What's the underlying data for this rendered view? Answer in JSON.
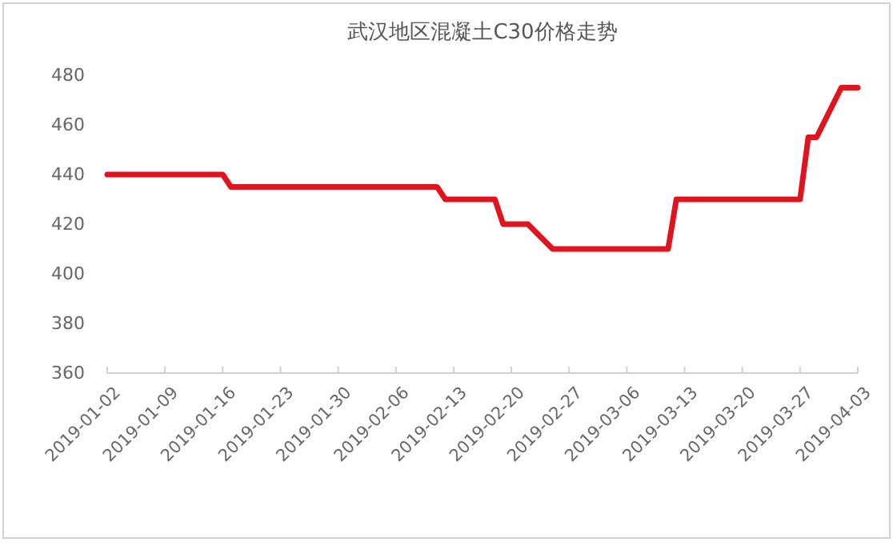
{
  "chart_data": {
    "type": "line",
    "title": "武汉地区混凝土C30价格走势",
    "x": [
      "2019-01-02",
      "2019-01-16",
      "2019-01-17",
      "2019-02-11",
      "2019-02-12",
      "2019-02-18",
      "2019-02-19",
      "2019-02-22",
      "2019-02-25",
      "2019-03-11",
      "2019-03-12",
      "2019-03-27",
      "2019-03-28",
      "2019-03-29",
      "2019-04-01",
      "2019-04-03"
    ],
    "series": [
      {
        "color": "#e0141e",
        "values": [
          440,
          440,
          435,
          435,
          430,
          430,
          420,
          420,
          410,
          410,
          430,
          430,
          455,
          455,
          475,
          475
        ]
      }
    ],
    "xlim": [
      "2019-01-02",
      "2019-04-03"
    ],
    "xticks": [
      "2019-01-02",
      "2019-01-09",
      "2019-01-16",
      "2019-01-23",
      "2019-01-30",
      "2019-02-06",
      "2019-02-13",
      "2019-02-20",
      "2019-02-27",
      "2019-03-06",
      "2019-03-13",
      "2019-03-20",
      "2019-03-27",
      "2019-04-03"
    ],
    "ylim": [
      360,
      480
    ],
    "yticks": [
      360,
      380,
      400,
      420,
      440,
      460,
      480
    ],
    "marker": "none",
    "line_style": "solid"
  }
}
